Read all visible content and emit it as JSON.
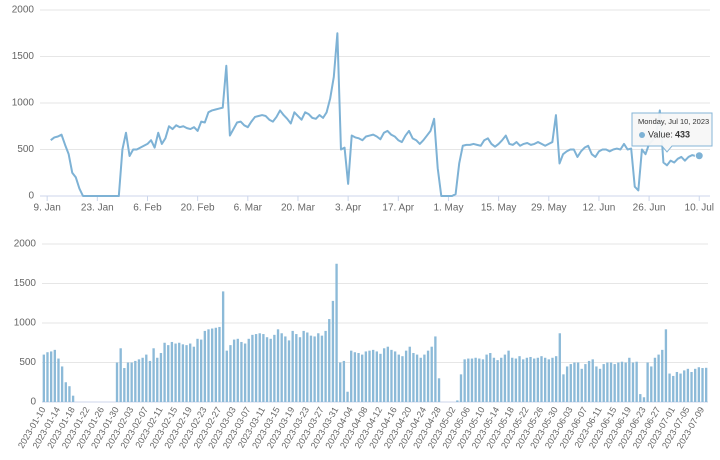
{
  "chart_data": [
    {
      "type": "line",
      "x": [
        "2023-01-10",
        "2023-01-11",
        "2023-01-12",
        "2023-01-13",
        "2023-01-14",
        "2023-01-15",
        "2023-01-16",
        "2023-01-17",
        "2023-01-18",
        "2023-01-19",
        "2023-01-20",
        "2023-01-21",
        "2023-01-22",
        "2023-01-23",
        "2023-01-24",
        "2023-01-25",
        "2023-01-26",
        "2023-01-27",
        "2023-01-28",
        "2023-01-29",
        "2023-01-30",
        "2023-01-31",
        "2023-02-01",
        "2023-02-02",
        "2023-02-03",
        "2023-02-04",
        "2023-02-05",
        "2023-02-06",
        "2023-02-07",
        "2023-02-08",
        "2023-02-09",
        "2023-02-10",
        "2023-02-11",
        "2023-02-12",
        "2023-02-13",
        "2023-02-14",
        "2023-02-15",
        "2023-02-16",
        "2023-02-17",
        "2023-02-18",
        "2023-02-19",
        "2023-02-20",
        "2023-02-21",
        "2023-02-22",
        "2023-02-23",
        "2023-02-24",
        "2023-02-25",
        "2023-02-26",
        "2023-02-27",
        "2023-02-28",
        "2023-03-01",
        "2023-03-02",
        "2023-03-03",
        "2023-03-04",
        "2023-03-05",
        "2023-03-06",
        "2023-03-07",
        "2023-03-08",
        "2023-03-09",
        "2023-03-10",
        "2023-03-11",
        "2023-03-12",
        "2023-03-13",
        "2023-03-14",
        "2023-03-15",
        "2023-03-16",
        "2023-03-17",
        "2023-03-18",
        "2023-03-19",
        "2023-03-20",
        "2023-03-21",
        "2023-03-22",
        "2023-03-23",
        "2023-03-24",
        "2023-03-25",
        "2023-03-26",
        "2023-03-27",
        "2023-03-28",
        "2023-03-29",
        "2023-03-30",
        "2023-03-31",
        "2023-04-01",
        "2023-04-02",
        "2023-04-03",
        "2023-04-04",
        "2023-04-05",
        "2023-04-06",
        "2023-04-07",
        "2023-04-08",
        "2023-04-09",
        "2023-04-10",
        "2023-04-11",
        "2023-04-12",
        "2023-04-13",
        "2023-04-14",
        "2023-04-15",
        "2023-04-16",
        "2023-04-17",
        "2023-04-18",
        "2023-04-19",
        "2023-04-20",
        "2023-04-21",
        "2023-04-22",
        "2023-04-23",
        "2023-04-24",
        "2023-04-25",
        "2023-04-26",
        "2023-04-27",
        "2023-04-28",
        "2023-04-29",
        "2023-04-30",
        "2023-05-01",
        "2023-05-02",
        "2023-05-03",
        "2023-05-04",
        "2023-05-05",
        "2023-05-06",
        "2023-05-07",
        "2023-05-08",
        "2023-05-09",
        "2023-05-10",
        "2023-05-11",
        "2023-05-12",
        "2023-05-13",
        "2023-05-14",
        "2023-05-15",
        "2023-05-16",
        "2023-05-17",
        "2023-05-18",
        "2023-05-19",
        "2023-05-20",
        "2023-05-21",
        "2023-05-22",
        "2023-05-23",
        "2023-05-24",
        "2023-05-25",
        "2023-05-26",
        "2023-05-27",
        "2023-05-28",
        "2023-05-29",
        "2023-05-30",
        "2023-05-31",
        "2023-06-01",
        "2023-06-02",
        "2023-06-03",
        "2023-06-04",
        "2023-06-05",
        "2023-06-06",
        "2023-06-07",
        "2023-06-08",
        "2023-06-09",
        "2023-06-10",
        "2023-06-11",
        "2023-06-12",
        "2023-06-13",
        "2023-06-14",
        "2023-06-15",
        "2023-06-16",
        "2023-06-17",
        "2023-06-18",
        "2023-06-19",
        "2023-06-20",
        "2023-06-21",
        "2023-06-22",
        "2023-06-23",
        "2023-06-24",
        "2023-06-25",
        "2023-06-26",
        "2023-06-27",
        "2023-06-28",
        "2023-06-29",
        "2023-06-30",
        "2023-07-01",
        "2023-07-02",
        "2023-07-03",
        "2023-07-04",
        "2023-07-05",
        "2023-07-06",
        "2023-07-07",
        "2023-07-08",
        "2023-07-09",
        "2023-07-10"
      ],
      "series": [
        {
          "name": "Value",
          "color": "#7eb2d5",
          "values": [
            600,
            630,
            640,
            660,
            550,
            450,
            250,
            200,
            80,
            0,
            0,
            0,
            0,
            0,
            0,
            0,
            0,
            0,
            0,
            0,
            500,
            680,
            430,
            500,
            500,
            520,
            540,
            560,
            600,
            520,
            680,
            560,
            620,
            750,
            720,
            760,
            740,
            750,
            730,
            720,
            740,
            700,
            800,
            790,
            900,
            920,
            930,
            940,
            950,
            1400,
            650,
            720,
            790,
            800,
            760,
            740,
            800,
            850,
            860,
            870,
            860,
            820,
            800,
            850,
            920,
            870,
            830,
            780,
            900,
            860,
            820,
            900,
            880,
            840,
            830,
            870,
            840,
            900,
            1050,
            1280,
            1750,
            500,
            520,
            130,
            650,
            630,
            620,
            600,
            640,
            650,
            660,
            640,
            610,
            680,
            700,
            660,
            640,
            600,
            580,
            650,
            700,
            620,
            600,
            560,
            600,
            650,
            700,
            830,
            300,
            0,
            0,
            0,
            0,
            20,
            350,
            540,
            550,
            550,
            560,
            550,
            540,
            600,
            620,
            560,
            530,
            560,
            600,
            650,
            560,
            550,
            580,
            540,
            560,
            570,
            550,
            560,
            580,
            560,
            540,
            560,
            580,
            870,
            350,
            450,
            480,
            500,
            500,
            420,
            480,
            520,
            540,
            450,
            420,
            480,
            500,
            500,
            480,
            500,
            510,
            500,
            560,
            500,
            510,
            100,
            60,
            500,
            450,
            560,
            600,
            660,
            920,
            360,
            330,
            380,
            360,
            400,
            420,
            380,
            420,
            440,
            430,
            433
          ]
        }
      ],
      "xlim": [
        "2023-01-07",
        "2023-07-13"
      ],
      "xticks": [
        {
          "value": "2023-01-09",
          "label": "9. Jan"
        },
        {
          "value": "2023-01-23",
          "label": "23. Jan"
        },
        {
          "value": "2023-02-06",
          "label": "6. Feb"
        },
        {
          "value": "2023-02-20",
          "label": "20. Feb"
        },
        {
          "value": "2023-03-06",
          "label": "6. Mar"
        },
        {
          "value": "2023-03-20",
          "label": "20. Mar"
        },
        {
          "value": "2023-04-03",
          "label": "3. Apr"
        },
        {
          "value": "2023-04-17",
          "label": "17. Apr"
        },
        {
          "value": "2023-05-01",
          "label": "1. May"
        },
        {
          "value": "2023-05-15",
          "label": "15. May"
        },
        {
          "value": "2023-05-29",
          "label": "29. May"
        },
        {
          "value": "2023-06-12",
          "label": "12. Jun"
        },
        {
          "value": "2023-06-26",
          "label": "26. Jun"
        },
        {
          "value": "2023-07-10",
          "label": "10. Jul"
        }
      ],
      "ylim": [
        0,
        2000
      ],
      "yticks": [
        0,
        500,
        1000,
        1500,
        2000
      ],
      "grid": true,
      "tooltip": {
        "date": "Monday, Jul 10, 2023",
        "label": "Value:",
        "value": 433
      }
    },
    {
      "type": "bar",
      "categories": [
        "2023-01-10",
        null,
        null,
        null,
        "2023-01-14",
        null,
        null,
        null,
        "2023-01-18",
        null,
        null,
        null,
        "2023-01-22",
        null,
        null,
        null,
        "2023-01-26",
        null,
        null,
        null,
        "2023-01-30",
        null,
        null,
        null,
        "2023-02-03",
        null,
        null,
        null,
        "2023-02-07",
        null,
        null,
        null,
        "2023-02-11",
        null,
        null,
        null,
        "2023-02-15",
        null,
        null,
        null,
        "2023-02-19",
        null,
        null,
        null,
        "2023-02-23",
        null,
        null,
        null,
        "2023-02-27",
        null,
        null,
        null,
        "2023-03-03",
        null,
        null,
        null,
        "2023-03-07",
        null,
        null,
        null,
        "2023-03-11",
        null,
        null,
        null,
        "2023-03-15",
        null,
        null,
        null,
        "2023-03-19",
        null,
        null,
        null,
        "2023-03-23",
        null,
        null,
        null,
        "2023-03-27",
        null,
        null,
        null,
        "2023-03-31",
        null,
        null,
        null,
        "2023-04-04",
        null,
        null,
        null,
        "2023-04-08",
        null,
        null,
        null,
        "2023-04-12",
        null,
        null,
        null,
        "2023-04-16",
        null,
        null,
        null,
        "2023-04-20",
        null,
        null,
        null,
        "2023-04-24",
        null,
        null,
        null,
        "2023-04-28",
        null,
        null,
        null,
        "2023-05-02",
        null,
        null,
        null,
        "2023-05-06",
        null,
        null,
        null,
        "2023-05-10",
        null,
        null,
        null,
        "2023-05-14",
        null,
        null,
        null,
        "2023-05-18",
        null,
        null,
        null,
        "2023-05-22",
        null,
        null,
        null,
        "2023-05-26",
        null,
        null,
        null,
        "2023-05-30",
        null,
        null,
        null,
        "2023-06-03",
        null,
        null,
        null,
        "2023-06-07",
        null,
        null,
        null,
        "2023-06-11",
        null,
        null,
        null,
        "2023-06-15",
        null,
        null,
        null,
        "2023-06-19",
        null,
        null,
        null,
        "2023-06-23",
        null,
        null,
        null,
        "2023-06-27",
        null,
        null,
        null,
        "2023-07-01",
        null,
        null,
        null,
        "2023-07-05",
        null,
        null,
        null,
        "2023-07-09",
        null
      ],
      "values": [
        600,
        630,
        640,
        660,
        550,
        450,
        250,
        200,
        80,
        0,
        0,
        0,
        0,
        0,
        0,
        0,
        0,
        0,
        0,
        0,
        500,
        680,
        430,
        500,
        500,
        520,
        540,
        560,
        600,
        520,
        680,
        560,
        620,
        750,
        720,
        760,
        740,
        750,
        730,
        720,
        740,
        700,
        800,
        790,
        900,
        920,
        930,
        940,
        950,
        1400,
        650,
        720,
        790,
        800,
        760,
        740,
        800,
        850,
        860,
        870,
        860,
        820,
        800,
        850,
        920,
        870,
        830,
        780,
        900,
        860,
        820,
        900,
        880,
        840,
        830,
        870,
        840,
        900,
        1050,
        1280,
        1750,
        500,
        520,
        130,
        650,
        630,
        620,
        600,
        640,
        650,
        660,
        640,
        610,
        680,
        700,
        660,
        640,
        600,
        580,
        650,
        700,
        620,
        600,
        560,
        600,
        650,
        700,
        830,
        300,
        0,
        0,
        0,
        0,
        20,
        350,
        540,
        550,
        550,
        560,
        550,
        540,
        600,
        620,
        560,
        530,
        560,
        600,
        650,
        560,
        550,
        580,
        540,
        560,
        570,
        550,
        560,
        580,
        560,
        540,
        560,
        580,
        870,
        350,
        450,
        480,
        500,
        500,
        420,
        480,
        520,
        540,
        450,
        420,
        480,
        500,
        500,
        480,
        500,
        510,
        500,
        560,
        500,
        510,
        100,
        60,
        500,
        450,
        560,
        600,
        660,
        920,
        360,
        330,
        380,
        360,
        400,
        420,
        380,
        420,
        440,
        430,
        433
      ],
      "color": "#8cbad8",
      "ylim": [
        0,
        2000
      ],
      "yticks": [
        0,
        500,
        1000,
        1500,
        2000
      ],
      "grid": true
    }
  ]
}
